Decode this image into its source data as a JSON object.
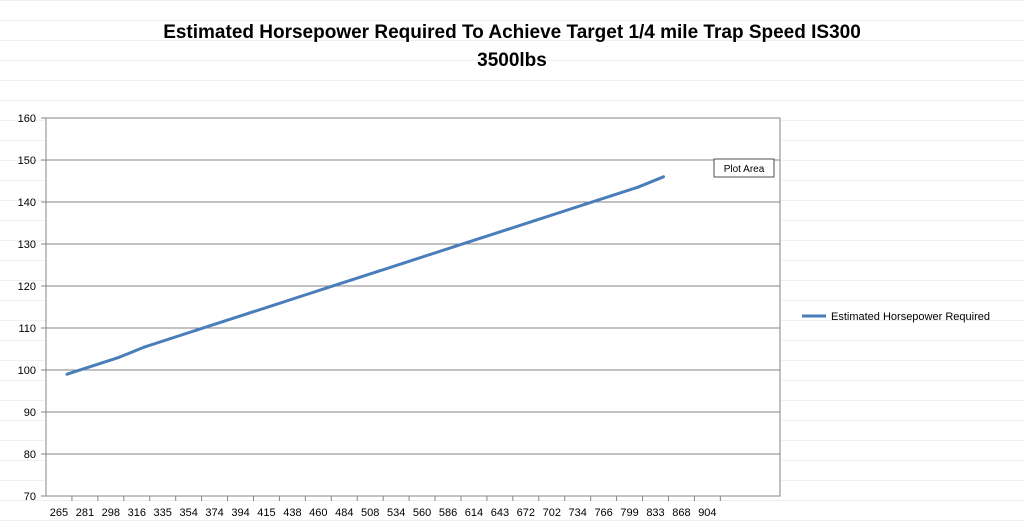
{
  "chart_data": {
    "type": "line",
    "title": "Estimated Horsepower Required To Achieve Target 1/4 mile Trap Speed IS300",
    "subtitle": "3500lbs",
    "xlabel": "",
    "ylabel": "",
    "ylim": [
      70,
      160
    ],
    "y_ticks": [
      70,
      80,
      90,
      100,
      110,
      120,
      130,
      140,
      150,
      160
    ],
    "grid": true,
    "legend_position": "right",
    "categories": [
      "265",
      "281",
      "298",
      "316",
      "335",
      "354",
      "374",
      "394",
      "415",
      "438",
      "460",
      "484",
      "508",
      "534",
      "560",
      "586",
      "614",
      "643",
      "672",
      "702",
      "734",
      "766",
      "799",
      "833",
      "868",
      "904"
    ],
    "series": [
      {
        "name": "Estimated Horsepower Required",
        "color": "#4a7ebb",
        "values": [
          99,
          101,
          103,
          105.5,
          107.5,
          109.5,
          111.5,
          113.5,
          115.5,
          117.5,
          119.5,
          121.5,
          123.5,
          125.5,
          127.5,
          129.5,
          131.5,
          133.5,
          135.5,
          137.5,
          139.5,
          141.5,
          143.5,
          146,
          null,
          null
        ]
      }
    ]
  },
  "tooltip": {
    "label": "Plot Area"
  }
}
